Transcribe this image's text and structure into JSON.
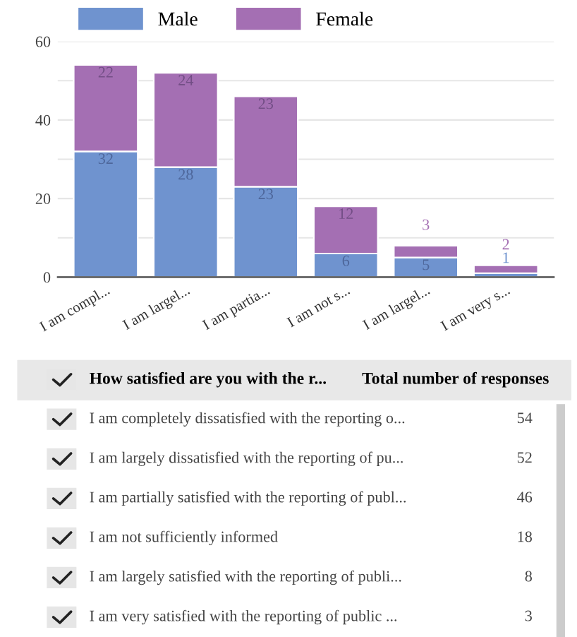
{
  "chart_data": [
    {
      "type": "bar",
      "stacked": true,
      "categories": [
        "I am compl...",
        "I am largel...",
        "I am partia...",
        "I am not s...",
        "I am largel...",
        "I am very s..."
      ],
      "series": [
        {
          "name": "Male",
          "color": "#6f93cf",
          "values": [
            32,
            28,
            23,
            6,
            5,
            1
          ]
        },
        {
          "name": "Female",
          "color": "#a46fb3",
          "values": [
            22,
            24,
            23,
            12,
            3,
            2
          ]
        }
      ],
      "ylim": [
        0,
        60
      ],
      "yticks": [
        0,
        {
          "value": 10,
          "label": null
        },
        20,
        {
          "value": 30,
          "label": null
        },
        40,
        {
          "value": 50,
          "label": null
        },
        60
      ],
      "grid": "y",
      "legend": "top left",
      "data_labels": true
    },
    {
      "type": "other",
      "title": "How satisfied are you with the r...",
      "xlabel": "Total number of responses",
      "categories": [
        "I am completely dissatisfied with the reporting o...",
        "I am largely dissatisfied with the reporting of pu...",
        "I am partially satisfied with the reporting of publ...",
        "I am not sufficiently informed",
        "I am largely satisfied with the reporting of publi...",
        "I am very satisfied with the reporting of public ..."
      ],
      "values": [
        54,
        52,
        46,
        18,
        8,
        3
      ],
      "data_labels": true
    }
  ]
}
